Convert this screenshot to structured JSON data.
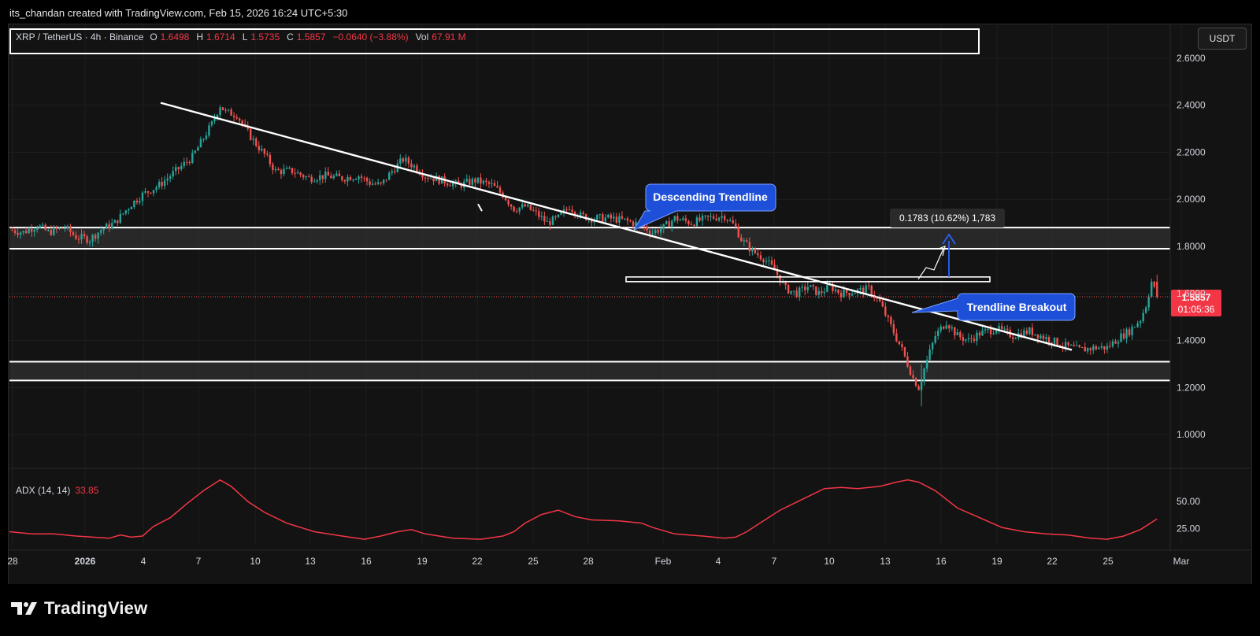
{
  "credit": "its_chandan created with TradingView.com, Feb 15, 2026 16:24 UTC+5:30",
  "legend": {
    "symbol": "XRP / TetherUS · 4h · Binance",
    "open_label": "O",
    "open": "1.6498",
    "high_label": "H",
    "high": "1.6714",
    "low_label": "L",
    "low": "1.5735",
    "close_label": "C",
    "close": "1.5857",
    "change": "−0.0640 (−3.88%)",
    "vol_label": "Vol",
    "vol": "67.91 M"
  },
  "currency": "USDT",
  "price_label": {
    "price": "1.5857",
    "countdown": "01:05:36"
  },
  "annotations": {
    "descending_trendline": "Descending Trendline",
    "trendline_breakout": "Trendline Breakout",
    "measure": "0.1783 (10.62%) 1,783"
  },
  "adx": {
    "label": "ADX (14, 14)",
    "value": "33.85"
  },
  "branding": "TradingView",
  "colors": {
    "up": "#26a69a",
    "down": "#ef5350",
    "background": "#131313",
    "callout": "#1e4fd8",
    "adx": "#f23645",
    "price_badge": "#f23645"
  },
  "chart_data": [
    {
      "type": "candlestick",
      "y_axis_ticks": [
        "2.6000",
        "2.4000",
        "2.2000",
        "2.0000",
        "1.8000",
        "1.6000",
        "1.4000",
        "1.2000",
        "1.0000"
      ],
      "ylim": [
        0.86,
        2.74
      ],
      "x_axis_ticks": [
        "28",
        "2026",
        "4",
        "7",
        "10",
        "13",
        "16",
        "19",
        "22",
        "25",
        "28",
        "Feb",
        "4",
        "7",
        "10",
        "13",
        "16",
        "19",
        "22",
        "25",
        "Mar"
      ],
      "price_path": [
        [
          0,
          1.87
        ],
        [
          5,
          1.86
        ],
        [
          10,
          1.89
        ],
        [
          14,
          1.86
        ],
        [
          20,
          1.88
        ],
        [
          24,
          1.84
        ],
        [
          29,
          1.83
        ],
        [
          33,
          1.87
        ],
        [
          38,
          1.9
        ],
        [
          44,
          1.98
        ],
        [
          48,
          2.02
        ],
        [
          54,
          2.06
        ],
        [
          60,
          2.12
        ],
        [
          66,
          2.18
        ],
        [
          70,
          2.26
        ],
        [
          73,
          2.32
        ],
        [
          76,
          2.4
        ],
        [
          78,
          2.37
        ],
        [
          82,
          2.36
        ],
        [
          85,
          2.3
        ],
        [
          88,
          2.25
        ],
        [
          92,
          2.19
        ],
        [
          96,
          2.12
        ],
        [
          102,
          2.12
        ],
        [
          108,
          2.09
        ],
        [
          114,
          2.1
        ],
        [
          120,
          2.09
        ],
        [
          126,
          2.1
        ],
        [
          130,
          2.07
        ],
        [
          134,
          2.06
        ],
        [
          138,
          2.12
        ],
        [
          142,
          2.17
        ],
        [
          146,
          2.14
        ],
        [
          150,
          2.1
        ],
        [
          156,
          2.08
        ],
        [
          162,
          2.06
        ],
        [
          168,
          2.08
        ],
        [
          174,
          2.06
        ],
        [
          178,
          2.02
        ],
        [
          182,
          1.96
        ],
        [
          186,
          1.97
        ],
        [
          190,
          1.94
        ],
        [
          194,
          1.9
        ],
        [
          198,
          1.92
        ],
        [
          202,
          1.97
        ],
        [
          206,
          1.93
        ],
        [
          210,
          1.92
        ],
        [
          216,
          1.92
        ],
        [
          222,
          1.91
        ],
        [
          228,
          1.89
        ],
        [
          232,
          1.86
        ],
        [
          236,
          1.88
        ],
        [
          240,
          1.92
        ],
        [
          246,
          1.9
        ],
        [
          252,
          1.92
        ],
        [
          258,
          1.93
        ],
        [
          262,
          1.88
        ],
        [
          264,
          1.83
        ],
        [
          268,
          1.78
        ],
        [
          272,
          1.75
        ],
        [
          276,
          1.7
        ],
        [
          280,
          1.62
        ],
        [
          284,
          1.6
        ],
        [
          288,
          1.63
        ],
        [
          292,
          1.6
        ],
        [
          296,
          1.63
        ],
        [
          300,
          1.6
        ],
        [
          306,
          1.61
        ],
        [
          310,
          1.62
        ],
        [
          314,
          1.56
        ],
        [
          318,
          1.46
        ],
        [
          322,
          1.36
        ],
        [
          326,
          1.24
        ],
        [
          328,
          1.2
        ],
        [
          330,
          1.28
        ],
        [
          334,
          1.42
        ],
        [
          338,
          1.48
        ],
        [
          342,
          1.42
        ],
        [
          346,
          1.4
        ],
        [
          350,
          1.43
        ],
        [
          356,
          1.45
        ],
        [
          362,
          1.42
        ],
        [
          368,
          1.44
        ],
        [
          374,
          1.41
        ],
        [
          380,
          1.38
        ],
        [
          386,
          1.36
        ],
        [
          392,
          1.37
        ],
        [
          396,
          1.37
        ],
        [
          400,
          1.41
        ],
        [
          404,
          1.44
        ],
        [
          408,
          1.49
        ],
        [
          410,
          1.55
        ],
        [
          412,
          1.65
        ],
        [
          414,
          1.5857
        ]
      ],
      "horizontal_zones": [
        [
          1.79,
          1.88
        ],
        [
          1.23,
          1.31
        ]
      ],
      "resistance_box": [
        1.65,
        1.67
      ],
      "trendline": {
        "from": [
          "Jan 5",
          2.41
        ],
        "to": [
          "Feb 23",
          1.36
        ]
      },
      "measure_projection": {
        "from": 1.67,
        "to": 1.85,
        "change": 0.1783,
        "percent": 10.62,
        "ticks": 1783
      },
      "last_price": 1.5857
    },
    {
      "type": "line",
      "name": "ADX (14, 14)",
      "y_axis_ticks": [
        "50.00",
        "25.00"
      ],
      "ylim": [
        10,
        80
      ],
      "values": [
        [
          0,
          22
        ],
        [
          8,
          20
        ],
        [
          16,
          20
        ],
        [
          24,
          18
        ],
        [
          30,
          17
        ],
        [
          36,
          16
        ],
        [
          40,
          19
        ],
        [
          44,
          17
        ],
        [
          48,
          18
        ],
        [
          52,
          27
        ],
        [
          58,
          35
        ],
        [
          64,
          48
        ],
        [
          70,
          60
        ],
        [
          76,
          70
        ],
        [
          80,
          64
        ],
        [
          86,
          50
        ],
        [
          92,
          40
        ],
        [
          100,
          30
        ],
        [
          110,
          22
        ],
        [
          120,
          18
        ],
        [
          128,
          15
        ],
        [
          134,
          18
        ],
        [
          140,
          22
        ],
        [
          145,
          24
        ],
        [
          150,
          20
        ],
        [
          160,
          16
        ],
        [
          170,
          15
        ],
        [
          178,
          18
        ],
        [
          182,
          22
        ],
        [
          186,
          30
        ],
        [
          192,
          38
        ],
        [
          198,
          42
        ],
        [
          204,
          36
        ],
        [
          210,
          33
        ],
        [
          220,
          32
        ],
        [
          228,
          30
        ],
        [
          232,
          26
        ],
        [
          240,
          20
        ],
        [
          250,
          18
        ],
        [
          258,
          16
        ],
        [
          262,
          17
        ],
        [
          266,
          22
        ],
        [
          272,
          32
        ],
        [
          278,
          42
        ],
        [
          286,
          52
        ],
        [
          294,
          62
        ],
        [
          300,
          63
        ],
        [
          306,
          62
        ],
        [
          314,
          64
        ],
        [
          320,
          68
        ],
        [
          324,
          70
        ],
        [
          328,
          68
        ],
        [
          334,
          60
        ],
        [
          342,
          44
        ],
        [
          350,
          35
        ],
        [
          358,
          26
        ],
        [
          366,
          22
        ],
        [
          374,
          20
        ],
        [
          382,
          19
        ],
        [
          390,
          16
        ],
        [
          396,
          15
        ],
        [
          402,
          18
        ],
        [
          408,
          24
        ],
        [
          414,
          33.85
        ]
      ]
    }
  ]
}
